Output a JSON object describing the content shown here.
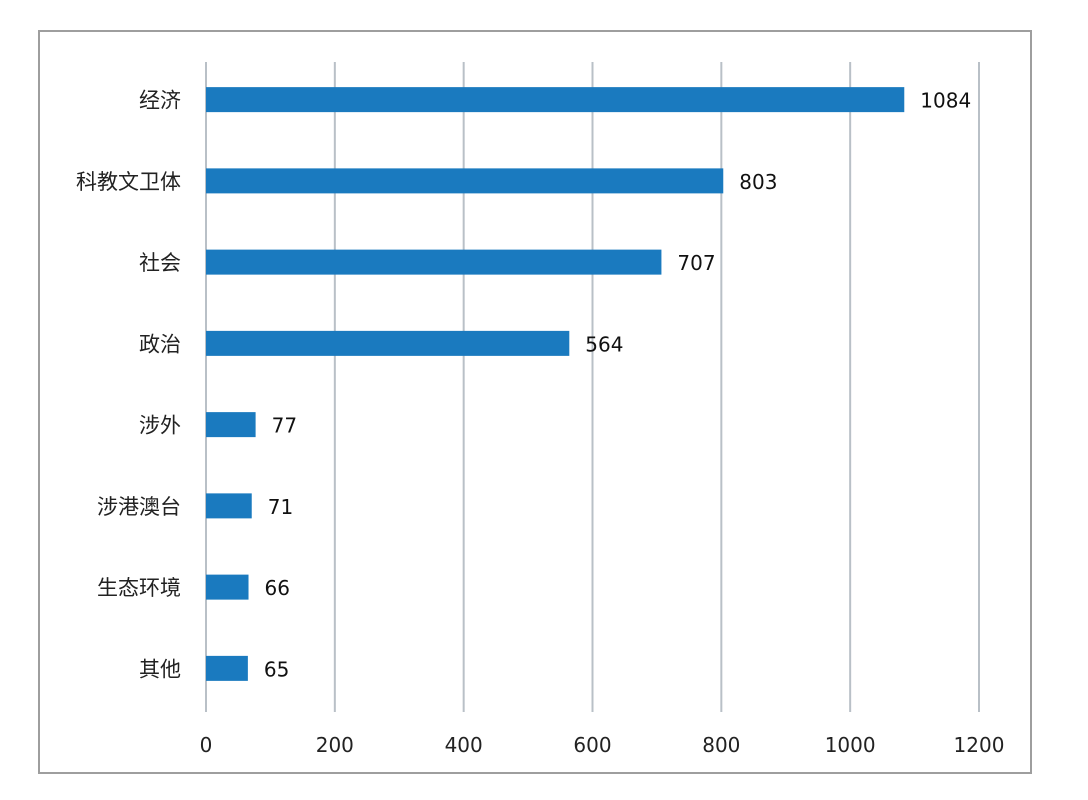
{
  "chart_data": {
    "type": "bar",
    "orientation": "horizontal",
    "categories": [
      "经济",
      "科教文卫体",
      "社会",
      "政治",
      "涉外",
      "涉港澳台",
      "生态环境",
      "其他"
    ],
    "values": [
      1084,
      803,
      707,
      564,
      77,
      71,
      66,
      65
    ],
    "data_labels": [
      "1084",
      "803",
      "707",
      "564",
      "77",
      "71",
      "66",
      "65"
    ],
    "x_ticks": [
      "0",
      "200",
      "400",
      "600",
      "800",
      "1000",
      "1200"
    ],
    "xlim": [
      0,
      1200
    ],
    "title": "",
    "xlabel": "",
    "ylabel": "",
    "grid": "vertical",
    "legend": "none",
    "bar_color": "#1a7abf",
    "grid_color": "#b9c0c7"
  }
}
